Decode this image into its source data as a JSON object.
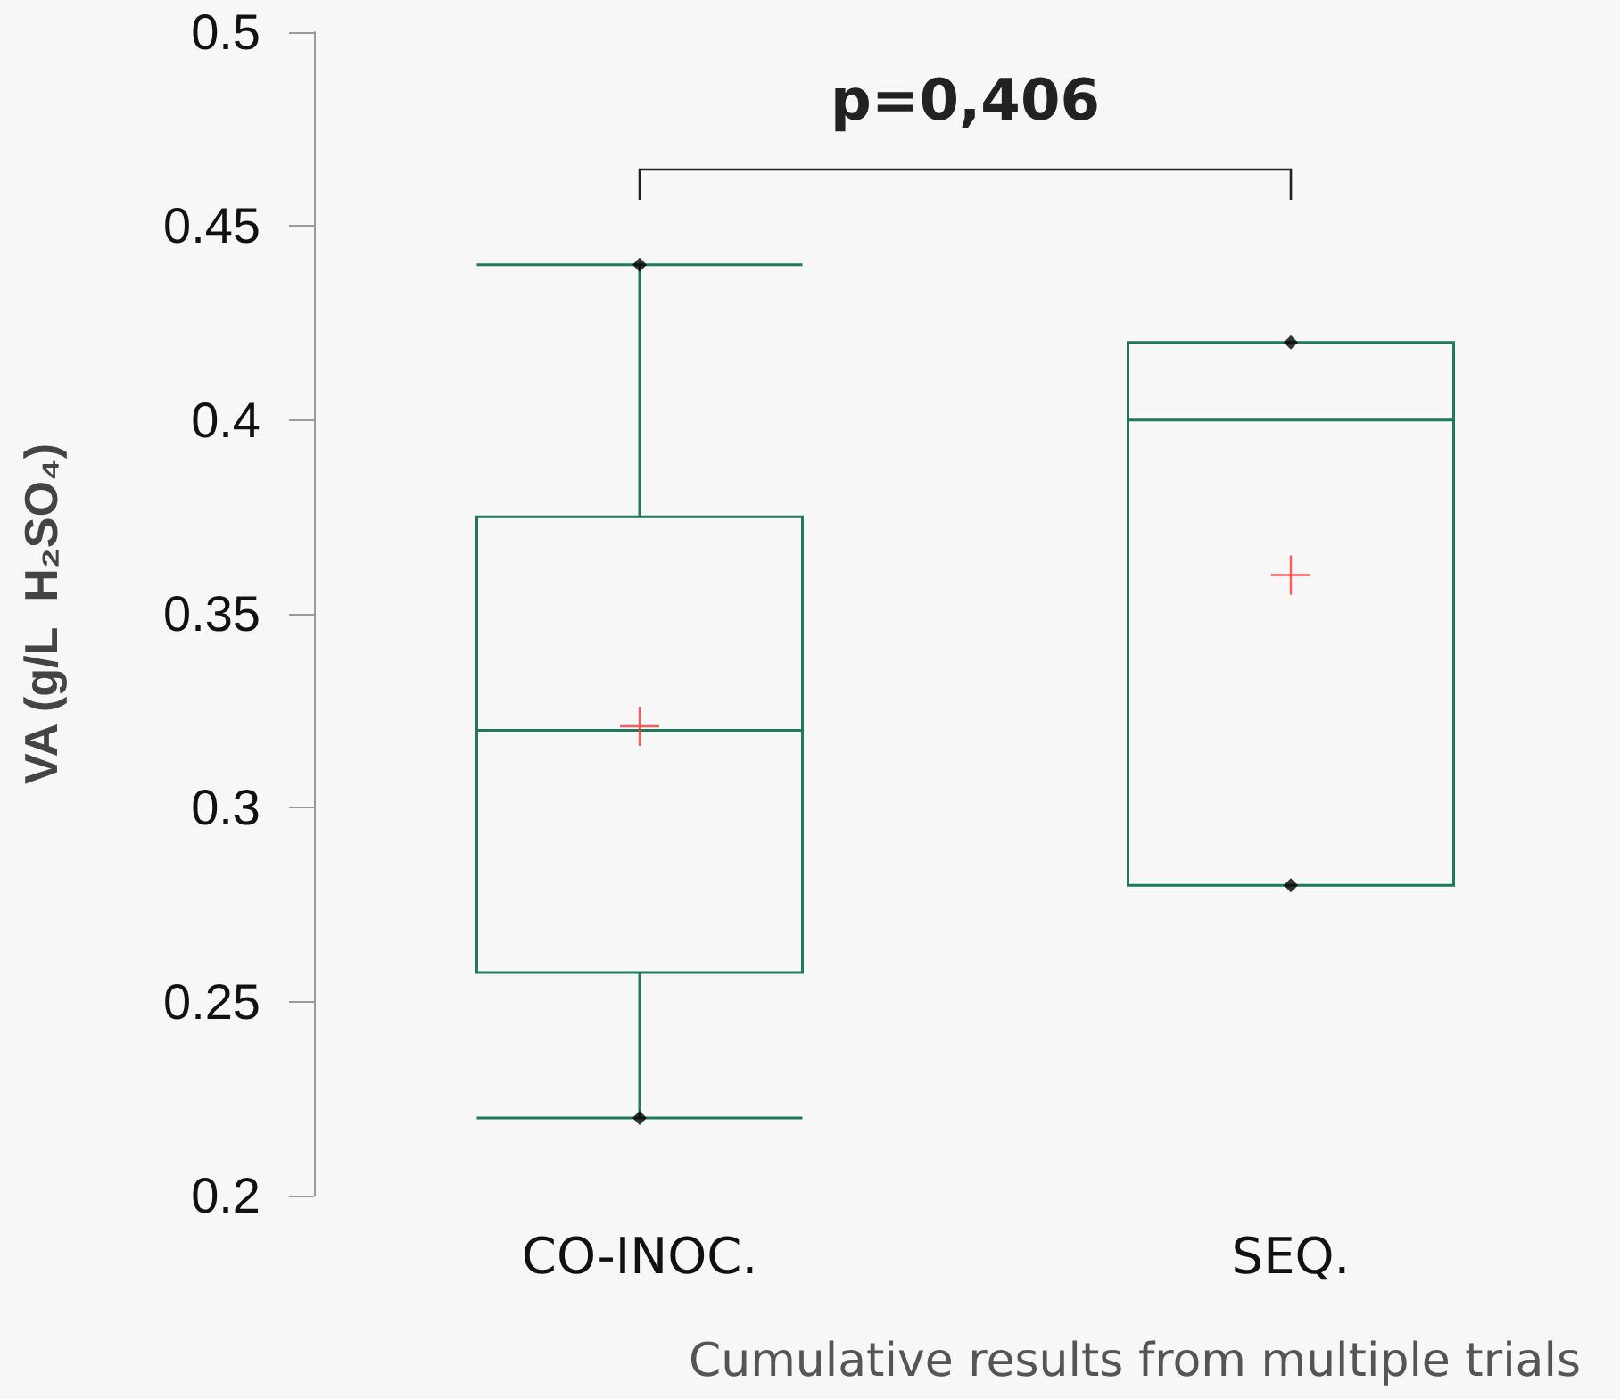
{
  "chart_data": {
    "type": "box",
    "categories": [
      "CO-INOC.",
      "SEQ."
    ],
    "ylabel": "VA (g/L  H₂SO₄)",
    "ylim": [
      0.2,
      0.5
    ],
    "yticks": [
      0.2,
      0.25,
      0.3,
      0.35,
      0.4,
      0.45,
      0.5
    ],
    "grid": false,
    "color": "#1f7a5c",
    "boxes": [
      {
        "low": 0.22,
        "q1": 0.2575,
        "median": 0.32,
        "q3": 0.375,
        "high": 0.44
      },
      {
        "low": 0.28,
        "q1": 0.28,
        "median": 0.4,
        "q3": 0.42,
        "high": 0.42
      }
    ],
    "series": [
      {
        "type": "scatter",
        "marker": "diamond",
        "color": "#000000",
        "x": [
          "CO-INOC.",
          "CO-INOC.",
          "SEQ.",
          "SEQ."
        ],
        "values": [
          0.22,
          0.44,
          0.28,
          0.42
        ]
      },
      {
        "type": "scatter",
        "marker": "cross",
        "color": "#ff3333",
        "x": [
          "CO-INOC.",
          "SEQ."
        ],
        "values": [
          0.321,
          0.36
        ]
      }
    ],
    "annotations": [
      "p=0,406",
      "Cumulative results from multiple trials"
    ]
  }
}
